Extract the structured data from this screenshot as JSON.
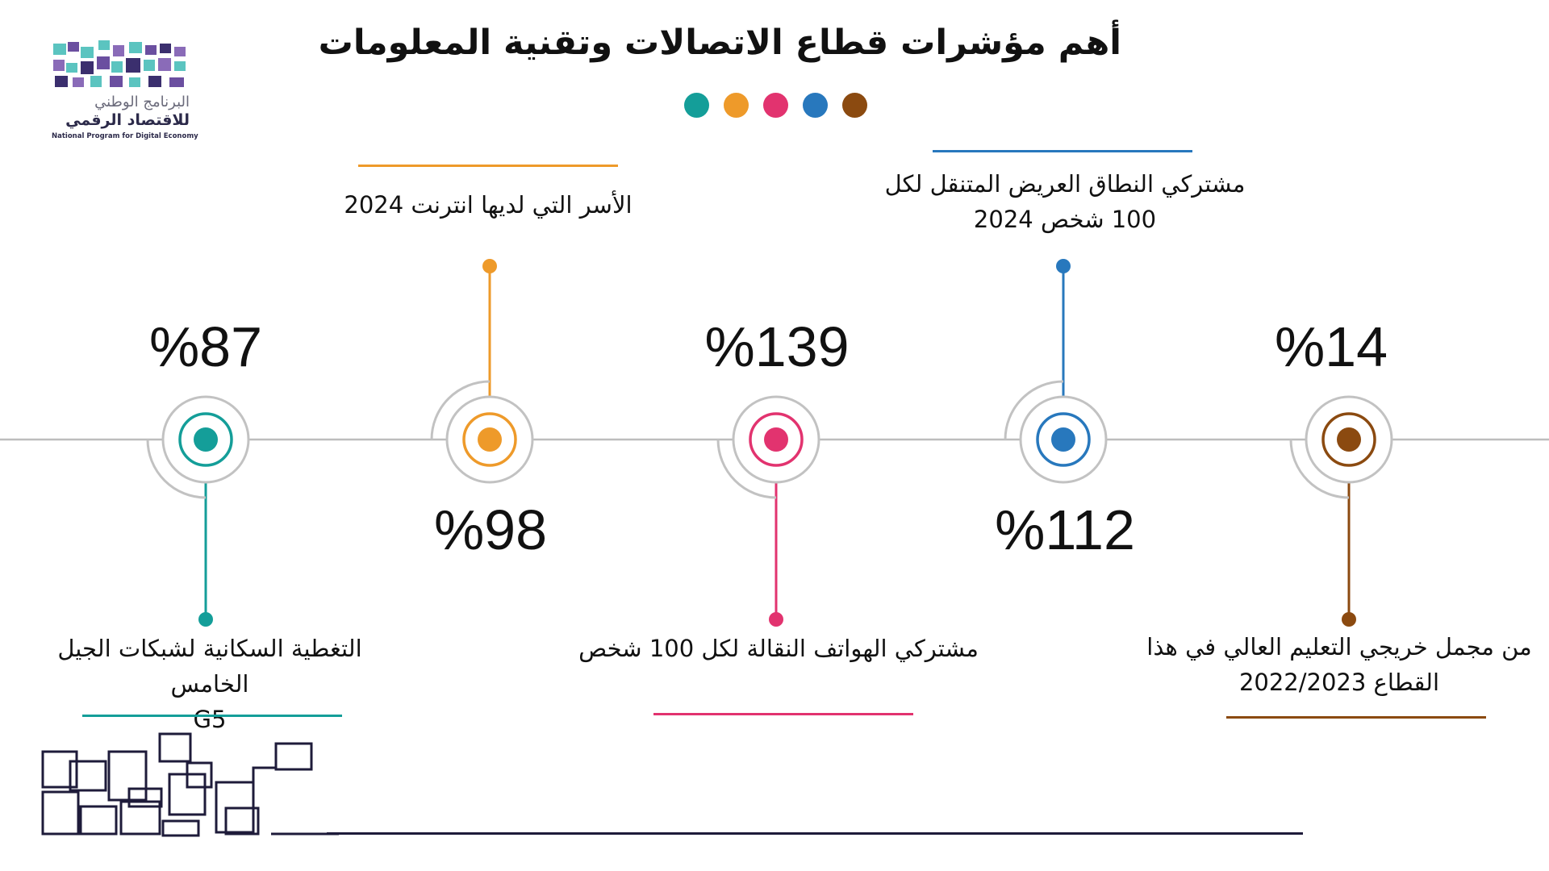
{
  "title": "أهم مؤشرات قطاع الاتصالات وتقنية المعلومات",
  "logo": {
    "line1": "البرنامج الوطني",
    "line2": "للاقتصاد الرقمي",
    "line3": "National Program for Digital Economy"
  },
  "colors": {
    "teal": "#149e99",
    "orange": "#ee9a2a",
    "pink": "#e2336f",
    "blue": "#2878bd",
    "brown": "#8b4a10",
    "ring": "#c2c2c2",
    "axis": "#bdbdbd",
    "dark": "#1e1b3a"
  },
  "legend_dots": [
    "teal",
    "orange",
    "pink",
    "blue",
    "brown"
  ],
  "indicators": [
    {
      "value": "%87",
      "label_line1": "التغطية السكانية لشبكات الجيل الخامس",
      "label_line2": "G5",
      "color": "teal",
      "position": "below"
    },
    {
      "value": "%98",
      "label_line1": "الأسر التي لديها انترنت 2024",
      "label_line2": "",
      "color": "orange",
      "position": "above"
    },
    {
      "value": "%139",
      "label_line1": "مشتركي الهواتف النقالة لكل 100 شخص",
      "label_line2": "",
      "color": "pink",
      "position": "below"
    },
    {
      "value": "%112",
      "label_line1": "مشتركي النطاق العريض المتنقل لكل",
      "label_line2": "100 شخص 2024",
      "color": "blue",
      "position": "above"
    },
    {
      "value": "%14",
      "label_line1": "من مجمل خريجي التعليم العالي في هذا",
      "label_line2": "القطاع 2022/2023",
      "color": "brown",
      "position": "below"
    }
  ]
}
